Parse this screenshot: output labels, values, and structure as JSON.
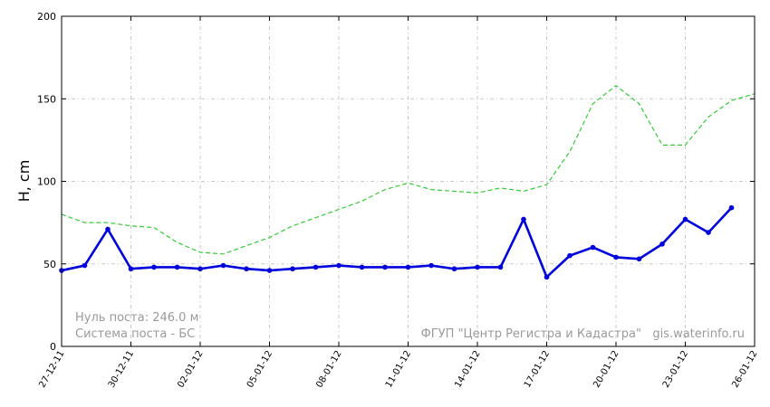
{
  "chart_data": {
    "type": "line",
    "title": "",
    "xlabel": "",
    "ylabel": "H, cm",
    "ylim": [
      0,
      200
    ],
    "yticks": [
      0,
      50,
      100,
      150,
      200
    ],
    "xlim": [
      "2011-12-27",
      "2012-01-26"
    ],
    "xtick_labels": [
      "27-12-11",
      "30-12-11",
      "02-01-12",
      "05-01-12",
      "08-01-12",
      "11-01-12",
      "14-01-12",
      "17-01-12",
      "20-01-12",
      "23-01-12",
      "26-01-12"
    ],
    "grid": true,
    "x_dates": [
      "2011-12-27",
      "2011-12-28",
      "2011-12-29",
      "2011-12-30",
      "2011-12-31",
      "2012-01-01",
      "2012-01-02",
      "2012-01-03",
      "2012-01-04",
      "2012-01-05",
      "2012-01-06",
      "2012-01-07",
      "2012-01-08",
      "2012-01-09",
      "2012-01-10",
      "2012-01-11",
      "2012-01-12",
      "2012-01-13",
      "2012-01-14",
      "2012-01-15",
      "2012-01-16",
      "2012-01-17",
      "2012-01-18",
      "2012-01-19",
      "2012-01-20",
      "2012-01-21",
      "2012-01-22",
      "2012-01-23",
      "2012-01-24",
      "2012-01-25",
      "2012-01-26"
    ],
    "series": [
      {
        "color": "#0000dd",
        "style": "solid-markers",
        "values": [
          46,
          49,
          71,
          47,
          48,
          48,
          47,
          49,
          47,
          46,
          47,
          48,
          49,
          48,
          48,
          48,
          49,
          47,
          48,
          48,
          77,
          42,
          55,
          60,
          54,
          53,
          62,
          77,
          69,
          84,
          null
        ]
      },
      {
        "color": "#33cc33",
        "style": "dashed",
        "values": [
          80,
          75,
          75,
          73,
          72,
          63,
          57,
          56,
          61,
          66,
          73,
          78,
          83,
          88,
          95,
          99,
          95,
          94,
          93,
          96,
          94,
          98,
          118,
          147,
          158,
          147,
          122,
          122,
          139,
          149,
          153
        ]
      }
    ]
  },
  "notes": {
    "zero_level": "Нуль поста: 246.0 м",
    "system": "Система поста - БС",
    "credit": "ФГУП \"Центр Регистра и Кадастра\"   gis.waterinfo.ru"
  }
}
